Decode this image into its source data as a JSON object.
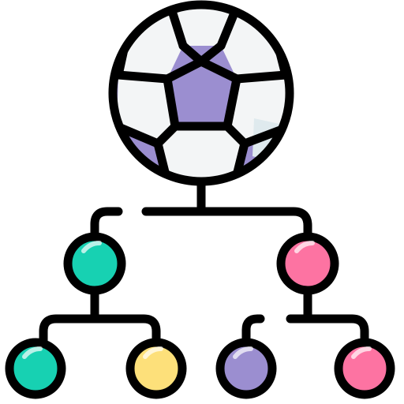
{
  "colors": {
    "outline": "#000000",
    "ball_dark": "#9b8ed0",
    "ball_light": "#f3f5f6",
    "ball_shade": "#dfeaee",
    "node_teal": "#17d1b2",
    "node_pink": "#fd73a2",
    "node_yellow": "#fde07a",
    "node_purple": "#9b8ed0",
    "highlight": "#ffffff"
  },
  "icons": {
    "root": "soccer-ball-icon",
    "structure": "tournament-bracket-icon"
  },
  "bracket": {
    "root": "soccer-ball",
    "level_1": [
      "teal",
      "pink"
    ],
    "level_2": [
      "teal",
      "yellow",
      "purple",
      "pink"
    ]
  }
}
